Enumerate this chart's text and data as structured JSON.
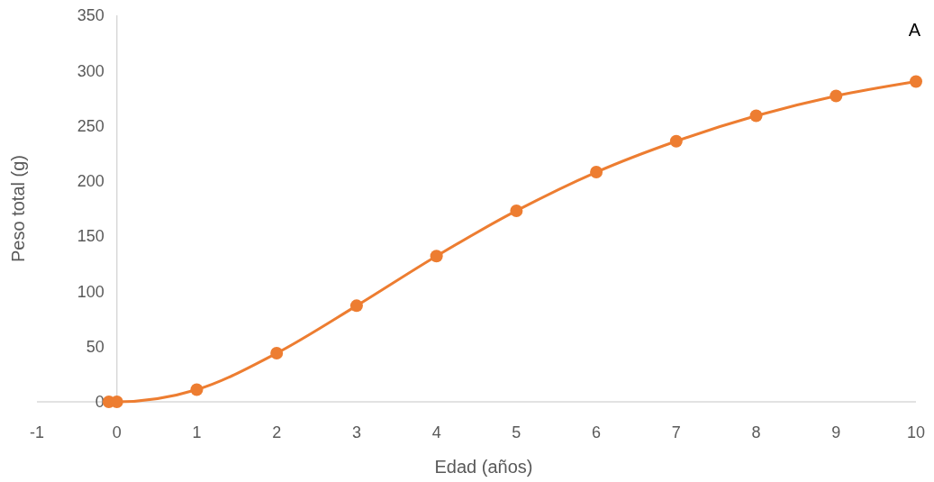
{
  "chart_data": {
    "type": "line",
    "xlabel": "Edad (años)",
    "ylabel": "Peso total (g)",
    "annotations": [
      "A"
    ],
    "x": [
      -0.1,
      0,
      1,
      2,
      3,
      4,
      5,
      6,
      7,
      8,
      9,
      10
    ],
    "series": [
      {
        "color": "#ed7d31",
        "values": [
          0,
          0,
          11,
          44,
          87,
          132,
          173,
          208,
          236,
          259,
          277,
          290
        ]
      }
    ],
    "xlim": [
      -1,
      10
    ],
    "xticks": [
      -1,
      0,
      1,
      2,
      3,
      4,
      5,
      6,
      7,
      8,
      9,
      10
    ],
    "ylim": [
      0,
      350
    ],
    "yticks": [
      0,
      50,
      100,
      150,
      200,
      250,
      300,
      350
    ],
    "marker": "circle",
    "line_style": "solid",
    "grid": false
  }
}
